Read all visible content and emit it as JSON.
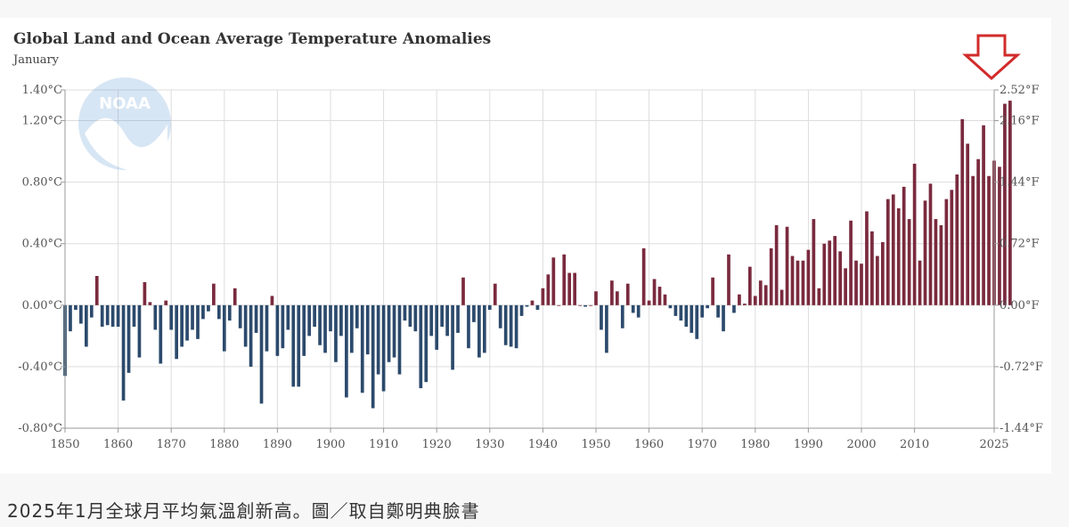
{
  "chart_data": {
    "type": "bar",
    "title": "Global Land and Ocean Average Temperature Anomalies",
    "subtitle": "January",
    "xlabel": "",
    "ylabel": "",
    "ylim": [
      -0.8,
      1.4
    ],
    "x_ticks": [
      "1850",
      "1860",
      "1870",
      "1880",
      "1890",
      "1900",
      "1910",
      "1920",
      "1930",
      "1940",
      "1950",
      "1960",
      "1970",
      "1980",
      "1990",
      "2000",
      "2010",
      "2025"
    ],
    "y_ticks_left": [
      "1.40°C",
      "1.20°C",
      "0.80°C",
      "0.40°C",
      "0.00°C",
      "-0.40°C",
      "-0.80°C"
    ],
    "y_ticks_left_values": [
      1.4,
      1.2,
      0.8,
      0.4,
      0.0,
      -0.4,
      -0.8
    ],
    "y_ticks_right": [
      "2.52°F",
      "2.16°F",
      "1.44°F",
      "0.72°F",
      "0.00°F",
      "-0.72°F",
      "-1.44°F"
    ],
    "series": [
      {
        "name": "Anomaly (°C)",
        "start_year": 1850,
        "values": [
          -0.46,
          -0.17,
          -0.03,
          -0.12,
          -0.27,
          -0.08,
          0.19,
          -0.14,
          -0.13,
          -0.14,
          -0.14,
          -0.62,
          -0.44,
          -0.14,
          -0.34,
          0.15,
          0.02,
          -0.16,
          -0.38,
          0.03,
          -0.16,
          -0.35,
          -0.27,
          -0.23,
          -0.16,
          -0.22,
          -0.09,
          -0.04,
          0.14,
          -0.09,
          -0.3,
          -0.1,
          0.11,
          -0.15,
          -0.27,
          -0.4,
          -0.18,
          -0.64,
          -0.3,
          0.06,
          -0.33,
          -0.28,
          -0.16,
          -0.53,
          -0.53,
          -0.33,
          -0.2,
          -0.14,
          -0.26,
          -0.31,
          -0.17,
          -0.37,
          -0.2,
          -0.6,
          -0.31,
          -0.15,
          -0.57,
          -0.32,
          -0.67,
          -0.45,
          -0.56,
          -0.37,
          -0.34,
          -0.45,
          -0.1,
          -0.14,
          -0.17,
          -0.54,
          -0.5,
          -0.2,
          -0.29,
          -0.14,
          -0.2,
          -0.42,
          -0.18,
          0.18,
          -0.28,
          -0.11,
          -0.34,
          -0.31,
          -0.03,
          0.14,
          -0.15,
          -0.26,
          -0.27,
          -0.28,
          -0.07,
          -0.01,
          0.03,
          -0.03,
          0.11,
          0.2,
          0.31,
          0.0,
          0.33,
          0.21,
          0.21,
          0.0,
          -0.01,
          0.0,
          0.09,
          -0.16,
          -0.31,
          0.16,
          0.09,
          -0.15,
          0.14,
          -0.05,
          -0.08,
          0.37,
          0.03,
          0.17,
          0.12,
          0.07,
          -0.02,
          -0.07,
          -0.1,
          -0.14,
          -0.18,
          -0.22,
          -0.08,
          -0.02,
          0.18,
          -0.08,
          -0.17,
          0.33,
          -0.05,
          0.07,
          0.01,
          0.25,
          0.06,
          0.16,
          0.13,
          0.37,
          0.52,
          0.1,
          0.51,
          0.32,
          0.29,
          0.29,
          0.36,
          0.56,
          0.11,
          0.4,
          0.42,
          0.45,
          0.35,
          0.24,
          0.55,
          0.29,
          0.27,
          0.61,
          0.48,
          0.32,
          0.41,
          0.69,
          0.72,
          0.63,
          0.77,
          0.56,
          0.92,
          0.29,
          0.68,
          0.79,
          0.56,
          0.52,
          0.69,
          0.75,
          0.85,
          1.21,
          1.05,
          0.84,
          0.95,
          1.17,
          0.84,
          0.94,
          0.9,
          1.31,
          1.33
        ]
      }
    ],
    "colors": {
      "positive": "#7a2a3e",
      "negative": "#2c4a6c",
      "grid": "#dddddd",
      "arrow": "#d22b2b"
    }
  },
  "watermark": {
    "label": "NOAA"
  },
  "caption": "2025年1月全球月平均氣溫創新高。圖／取自鄭明典臉書"
}
